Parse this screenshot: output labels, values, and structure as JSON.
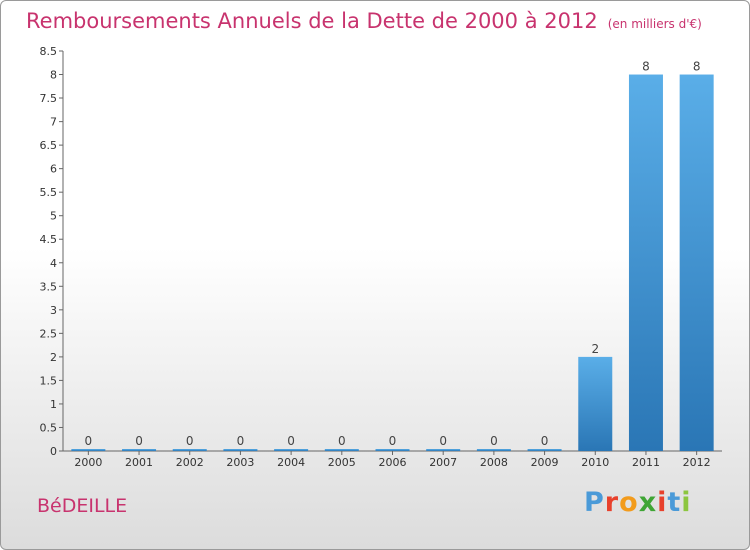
{
  "header": {
    "title": "Remboursements Annuels de la Dette de 2000 à 2012",
    "subtitle": "(en milliers d'€)"
  },
  "commune": "BéDEILLE",
  "brand": {
    "letters": [
      "P",
      "r",
      "o",
      "x",
      "i",
      "t",
      "i"
    ],
    "colors": [
      "#4a9ad8",
      "#e8412c",
      "#f29b1c",
      "#3fa535",
      "#e8412c",
      "#4a9ad8",
      "#8cc63f"
    ]
  },
  "chart_data": {
    "type": "bar",
    "categories": [
      "2000",
      "2001",
      "2002",
      "2003",
      "2004",
      "2005",
      "2006",
      "2007",
      "2008",
      "2009",
      "2010",
      "2011",
      "2012"
    ],
    "values": [
      0,
      0,
      0,
      0,
      0,
      0,
      0,
      0,
      0,
      0,
      2,
      8,
      8
    ],
    "value_labels": [
      "0",
      "0",
      "0",
      "0",
      "0",
      "0",
      "0",
      "0",
      "0",
      "0",
      "2",
      "8",
      "8"
    ],
    "ylim": [
      0,
      8.5
    ],
    "yticks": [
      "0",
      "0.5",
      "1",
      "1.5",
      "2",
      "2.5",
      "3",
      "3.5",
      "4",
      "4.5",
      "5",
      "5.5",
      "6",
      "6.5",
      "7",
      "7.5",
      "8",
      "8.5"
    ],
    "grid": false,
    "bar_color": "#3d8fd0"
  }
}
